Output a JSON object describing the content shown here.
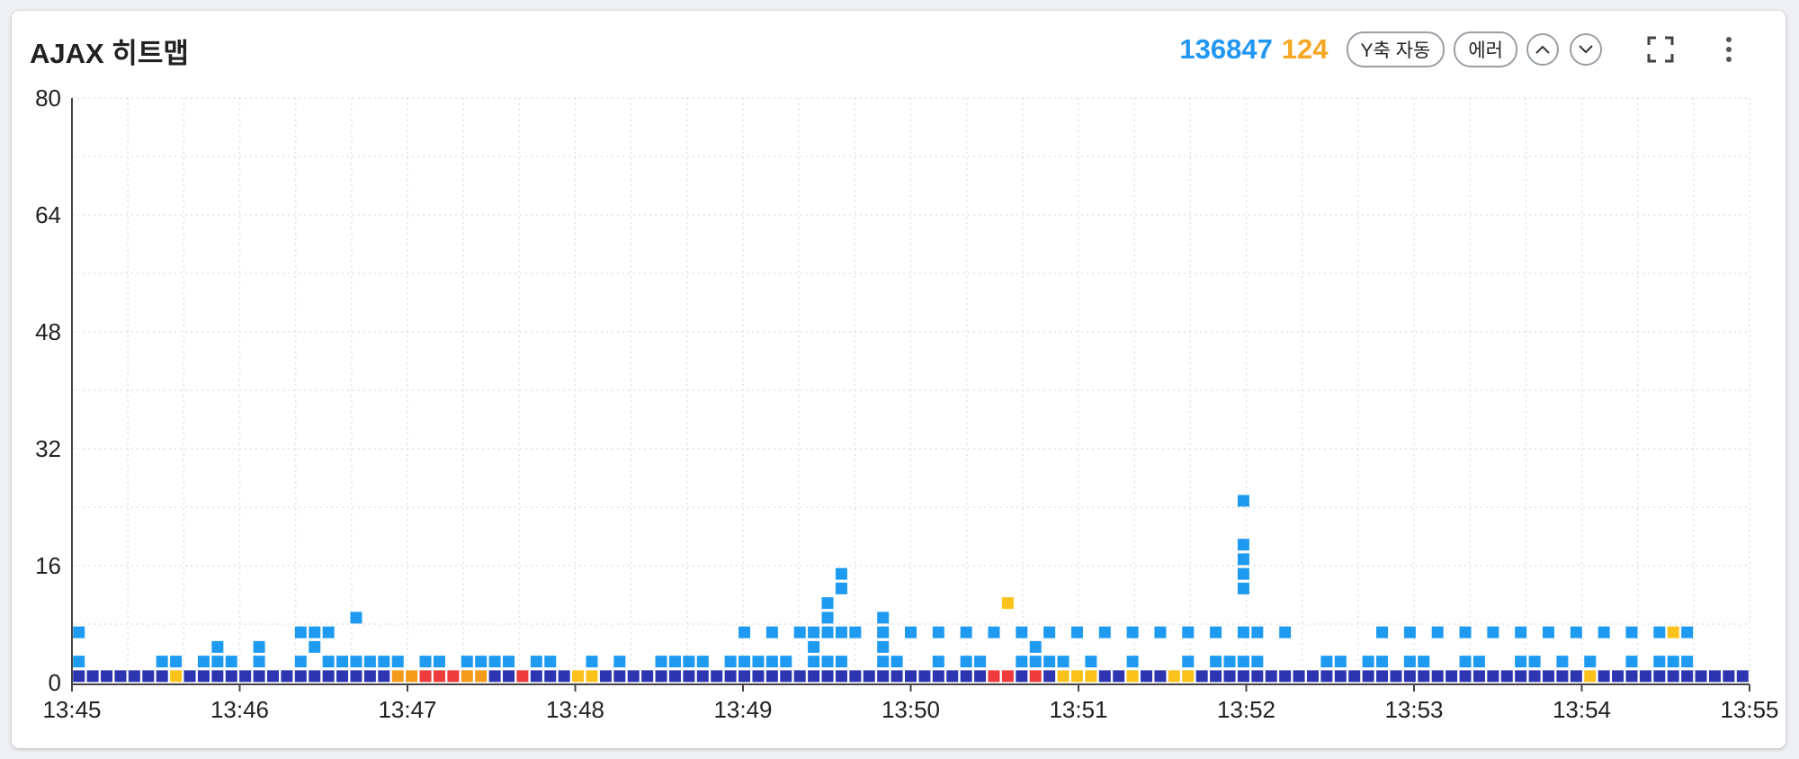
{
  "title": "AJAX 히트맵",
  "toolbar": {
    "total_count": "136847",
    "error_count": "124",
    "y_axis_label": "Y축 자동",
    "error_label": "에러",
    "up_icon": "chevron-up-icon",
    "down_icon": "chevron-down-icon",
    "fullscreen_icon": "fullscreen-icon",
    "more_icon": "more-vertical-icon"
  },
  "colors": {
    "total": "#2196f3",
    "error": "#f5a623",
    "cell_dense": "#2d35b0",
    "cell_light": "#1e9bf0",
    "cell_warn": "#fbc21c",
    "cell_slow": "#f59b1b",
    "cell_error": "#ee3b3b"
  },
  "chart_data": {
    "type": "heatmap",
    "title": "AJAX 히트맵",
    "xlabel": "",
    "ylabel": "",
    "x_ticks": [
      "13:45",
      "13:46",
      "13:47",
      "13:48",
      "13:49",
      "13:50",
      "13:51",
      "13:52",
      "13:53",
      "13:54",
      "13:55"
    ],
    "y_ticks": [
      0,
      16,
      32,
      48,
      64,
      80
    ],
    "ylim": [
      0,
      80
    ],
    "grid": true,
    "xlim_minutes": [
      0,
      10
    ],
    "col_count": 121,
    "row_step": 2,
    "legend": "none",
    "cell_key": {
      "d": "cell_dense",
      "l": "cell_light",
      "y": "cell_warn",
      "o": "cell_slow",
      "r": "cell_error"
    },
    "base_row": "dddddddydddddddddddddddoorrrooddrdddyyddddddddddddddddddddddddddddrrdrdyyyddyddyyddddddddddddddddddddddddddddyddddddddddddddddddddddddddddddddddddddddddddddddyddd",
    "cells": [
      [
        0,
        2,
        "l"
      ],
      [
        0,
        6,
        "l"
      ],
      [
        6,
        2,
        "l"
      ],
      [
        7,
        2,
        "l"
      ],
      [
        9,
        2,
        "l"
      ],
      [
        10,
        2,
        "l"
      ],
      [
        10,
        4,
        "l"
      ],
      [
        11,
        2,
        "l"
      ],
      [
        13,
        2,
        "l"
      ],
      [
        13,
        4,
        "l"
      ],
      [
        16,
        2,
        "l"
      ],
      [
        16,
        6,
        "l"
      ],
      [
        17,
        4,
        "l"
      ],
      [
        17,
        6,
        "l"
      ],
      [
        18,
        2,
        "l"
      ],
      [
        18,
        6,
        "l"
      ],
      [
        19,
        2,
        "l"
      ],
      [
        20,
        2,
        "l"
      ],
      [
        20,
        8,
        "l"
      ],
      [
        21,
        2,
        "l"
      ],
      [
        22,
        2,
        "l"
      ],
      [
        23,
        2,
        "l"
      ],
      [
        25,
        2,
        "l"
      ],
      [
        26,
        2,
        "l"
      ],
      [
        28,
        2,
        "l"
      ],
      [
        29,
        2,
        "l"
      ],
      [
        30,
        2,
        "l"
      ],
      [
        31,
        2,
        "l"
      ],
      [
        33,
        2,
        "l"
      ],
      [
        34,
        2,
        "l"
      ],
      [
        37,
        2,
        "l"
      ],
      [
        39,
        2,
        "l"
      ],
      [
        42,
        2,
        "l"
      ],
      [
        43,
        2,
        "l"
      ],
      [
        44,
        2,
        "l"
      ],
      [
        45,
        2,
        "l"
      ],
      [
        47,
        2,
        "l"
      ],
      [
        48,
        2,
        "l"
      ],
      [
        48,
        6,
        "l"
      ],
      [
        49,
        2,
        "l"
      ],
      [
        50,
        2,
        "l"
      ],
      [
        50,
        6,
        "l"
      ],
      [
        51,
        2,
        "l"
      ],
      [
        52,
        6,
        "l"
      ],
      [
        53,
        2,
        "l"
      ],
      [
        53,
        4,
        "l"
      ],
      [
        53,
        6,
        "l"
      ],
      [
        54,
        2,
        "l"
      ],
      [
        54,
        6,
        "l"
      ],
      [
        54,
        8,
        "l"
      ],
      [
        54,
        10,
        "l"
      ],
      [
        55,
        2,
        "l"
      ],
      [
        55,
        6,
        "l"
      ],
      [
        55,
        12,
        "l"
      ],
      [
        55,
        14,
        "l"
      ],
      [
        56,
        6,
        "l"
      ],
      [
        58,
        2,
        "l"
      ],
      [
        58,
        4,
        "l"
      ],
      [
        58,
        6,
        "l"
      ],
      [
        58,
        8,
        "l"
      ],
      [
        59,
        2,
        "l"
      ],
      [
        60,
        6,
        "l"
      ],
      [
        62,
        2,
        "l"
      ],
      [
        62,
        6,
        "l"
      ],
      [
        64,
        2,
        "l"
      ],
      [
        64,
        6,
        "l"
      ],
      [
        65,
        2,
        "l"
      ],
      [
        66,
        6,
        "l"
      ],
      [
        67,
        10,
        "y"
      ],
      [
        68,
        2,
        "l"
      ],
      [
        68,
        6,
        "l"
      ],
      [
        69,
        2,
        "l"
      ],
      [
        69,
        4,
        "l"
      ],
      [
        70,
        2,
        "l"
      ],
      [
        70,
        6,
        "l"
      ],
      [
        71,
        2,
        "l"
      ],
      [
        72,
        6,
        "l"
      ],
      [
        73,
        2,
        "l"
      ],
      [
        74,
        6,
        "l"
      ],
      [
        76,
        2,
        "l"
      ],
      [
        76,
        6,
        "l"
      ],
      [
        78,
        6,
        "l"
      ],
      [
        80,
        2,
        "l"
      ],
      [
        80,
        6,
        "l"
      ],
      [
        82,
        2,
        "l"
      ],
      [
        82,
        6,
        "l"
      ],
      [
        83,
        2,
        "l"
      ],
      [
        84,
        2,
        "l"
      ],
      [
        84,
        6,
        "l"
      ],
      [
        84,
        12,
        "l"
      ],
      [
        84,
        14,
        "l"
      ],
      [
        84,
        16,
        "l"
      ],
      [
        84,
        18,
        "l"
      ],
      [
        84,
        24,
        "l"
      ],
      [
        85,
        2,
        "l"
      ],
      [
        85,
        6,
        "l"
      ],
      [
        87,
        6,
        "l"
      ],
      [
        90,
        2,
        "l"
      ],
      [
        91,
        2,
        "l"
      ],
      [
        93,
        2,
        "l"
      ],
      [
        94,
        2,
        "l"
      ],
      [
        94,
        6,
        "l"
      ],
      [
        96,
        2,
        "l"
      ],
      [
        96,
        6,
        "l"
      ],
      [
        97,
        2,
        "l"
      ],
      [
        98,
        6,
        "l"
      ],
      [
        100,
        2,
        "l"
      ],
      [
        100,
        6,
        "l"
      ],
      [
        101,
        2,
        "l"
      ],
      [
        102,
        6,
        "l"
      ],
      [
        104,
        2,
        "l"
      ],
      [
        104,
        6,
        "l"
      ],
      [
        105,
        2,
        "l"
      ],
      [
        106,
        6,
        "l"
      ],
      [
        107,
        2,
        "l"
      ],
      [
        108,
        6,
        "l"
      ],
      [
        109,
        2,
        "l"
      ],
      [
        110,
        6,
        "l"
      ],
      [
        112,
        2,
        "l"
      ],
      [
        112,
        6,
        "l"
      ],
      [
        114,
        2,
        "l"
      ],
      [
        114,
        6,
        "l"
      ],
      [
        115,
        2,
        "l"
      ],
      [
        115,
        6,
        "y"
      ],
      [
        116,
        2,
        "l"
      ],
      [
        116,
        6,
        "l"
      ]
    ]
  }
}
